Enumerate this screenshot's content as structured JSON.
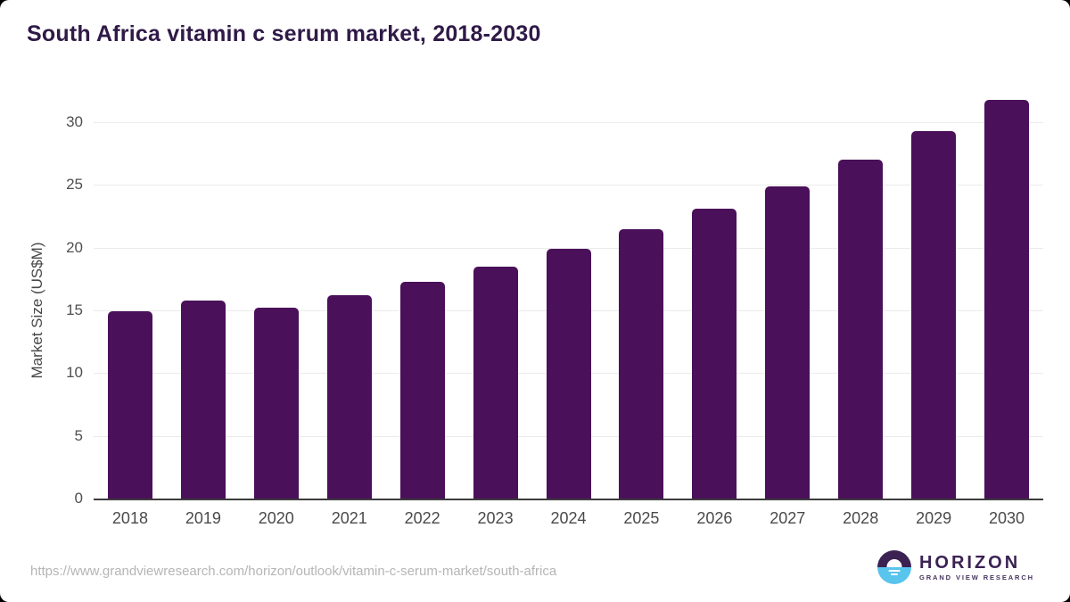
{
  "page": {
    "source_url": "https://www.grandviewresearch.com/horizon/outlook/vitamin-c-serum-market/south-africa"
  },
  "logo": {
    "name": "HORIZON",
    "subtitle": "GRAND VIEW RESEARCH"
  },
  "colors": {
    "bar": "#4a1059",
    "title_text": "#2f1a47",
    "axis_text": "#4f4f4f",
    "gridline": "#ebebeb",
    "axis_line": "#3c3c3c",
    "url_text": "#b5b5b5",
    "logo_purple": "#3b2253",
    "logo_blue": "#59c4ec"
  },
  "chart_data": {
    "type": "bar",
    "title": "South Africa vitamin c serum market, 2018-2030",
    "categories": [
      "2018",
      "2019",
      "2020",
      "2021",
      "2022",
      "2023",
      "2024",
      "2025",
      "2026",
      "2027",
      "2028",
      "2029",
      "2030"
    ],
    "values": [
      14.9,
      15.8,
      15.2,
      16.2,
      17.3,
      18.5,
      19.9,
      21.5,
      23.1,
      24.9,
      27.0,
      29.3,
      31.8
    ],
    "xlabel": "",
    "ylabel": "Market Size (US$M)",
    "ylim": [
      0,
      32
    ],
    "yticks": [
      0,
      5,
      10,
      15,
      20,
      25,
      30
    ],
    "grid": "horizontal",
    "legend": "none",
    "bar_color": "#4a1059"
  }
}
